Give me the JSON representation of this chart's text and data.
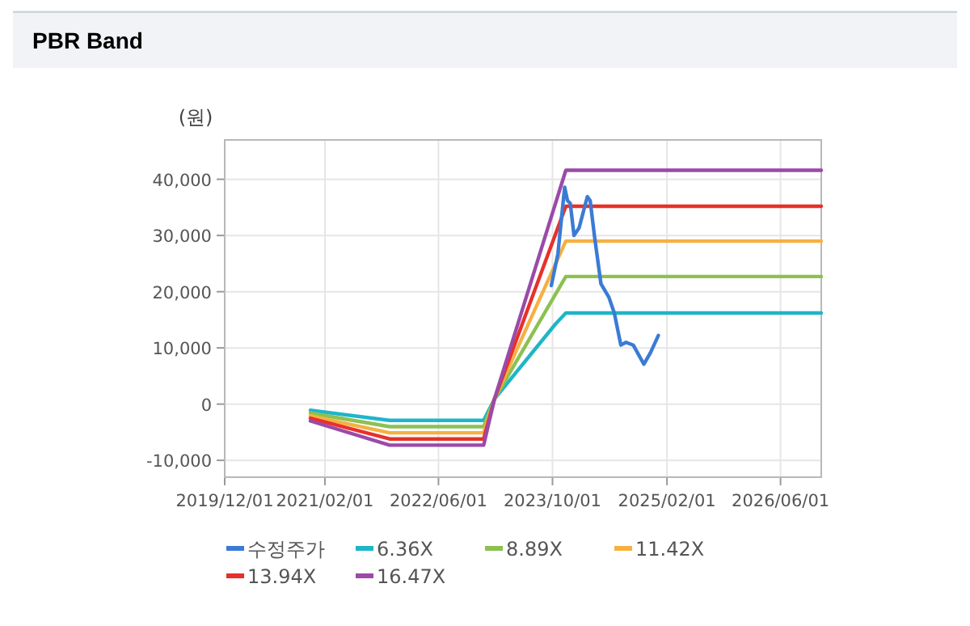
{
  "chart_data": {
    "type": "line",
    "title": "PBR Band",
    "ylabel": "(원)",
    "xlim": [
      "2019-12-01",
      "2026-11-22"
    ],
    "xticks": [
      {
        "value": "2019-12-01",
        "label": "2019/12/01"
      },
      {
        "value": "2021-02-01",
        "label": "2021/02/01"
      },
      {
        "value": "2022-06-01",
        "label": "2022/06/01"
      },
      {
        "value": "2023-10-01",
        "label": "2023/10/01"
      },
      {
        "value": "2025-02-01",
        "label": "2025/02/01"
      },
      {
        "value": "2026-06-01",
        "label": "2026/06/01"
      }
    ],
    "ylim": [
      -13000,
      47000
    ],
    "yticks": [
      {
        "value": -10000,
        "label": "-10,000"
      },
      0,
      {
        "value": 10000,
        "label": "10,000"
      },
      {
        "value": 20000,
        "label": "20,000"
      },
      {
        "value": 30000,
        "label": "30,000"
      },
      {
        "value": 40000,
        "label": "40,000"
      }
    ],
    "grid": true,
    "legend": "bottom",
    "series": [
      {
        "name": "수정주가",
        "color": "#3a7bd5",
        "x": [
          "2023-09-26",
          "2023-10-24",
          "2023-11-09",
          "2023-11-22",
          "2023-12-04",
          "2023-12-16",
          "2024-01-01",
          "2024-01-23",
          "2024-02-16",
          "2024-02-27",
          "2024-03-10",
          "2024-03-28",
          "2024-04-25",
          "2024-05-29",
          "2024-06-21",
          "2024-07-19",
          "2024-08-10",
          "2024-09-10",
          "2024-10-25",
          "2024-11-22",
          "2024-12-26"
        ],
        "values": [
          21100,
          26700,
          33300,
          38600,
          36200,
          35700,
          30000,
          31400,
          35200,
          36900,
          36200,
          30000,
          21400,
          19000,
          16200,
          10500,
          11000,
          10500,
          7100,
          9100,
          12200
        ]
      },
      {
        "name": "6.36X",
        "color": "#1fb5c8",
        "x": [
          "2020-12-01",
          "2021-11-04",
          "2022-12-11",
          "2023-01-26",
          "2023-10-15",
          "2023-11-27",
          "2026-11-22"
        ],
        "values": [
          -1100,
          -2900,
          -2900,
          900,
          14300,
          16200,
          16200
        ]
      },
      {
        "name": "8.89X",
        "color": "#8cc152",
        "x": [
          "2020-12-01",
          "2021-11-04",
          "2022-12-11",
          "2023-01-26",
          "2023-11-27",
          "2026-11-22"
        ],
        "values": [
          -1600,
          -4000,
          -4000,
          900,
          22700,
          22700
        ]
      },
      {
        "name": "11.42X",
        "color": "#f6b042",
        "x": [
          "2020-12-01",
          "2021-11-04",
          "2022-12-11",
          "2023-01-26",
          "2023-11-27",
          "2026-11-22"
        ],
        "values": [
          -2100,
          -5100,
          -5100,
          900,
          29000,
          29000
        ]
      },
      {
        "name": "13.94X",
        "color": "#e8302a",
        "x": [
          "2020-12-01",
          "2021-11-04",
          "2022-12-11",
          "2023-01-26",
          "2023-11-27",
          "2026-11-22"
        ],
        "values": [
          -2500,
          -6200,
          -6200,
          900,
          35200,
          35200
        ]
      },
      {
        "name": "16.47X",
        "color": "#9b4aa8",
        "x": [
          "2020-12-01",
          "2021-11-04",
          "2022-12-11",
          "2023-01-26",
          "2023-11-27",
          "2026-11-22"
        ],
        "values": [
          -3000,
          -7300,
          -7300,
          900,
          41600,
          41600
        ]
      }
    ]
  }
}
